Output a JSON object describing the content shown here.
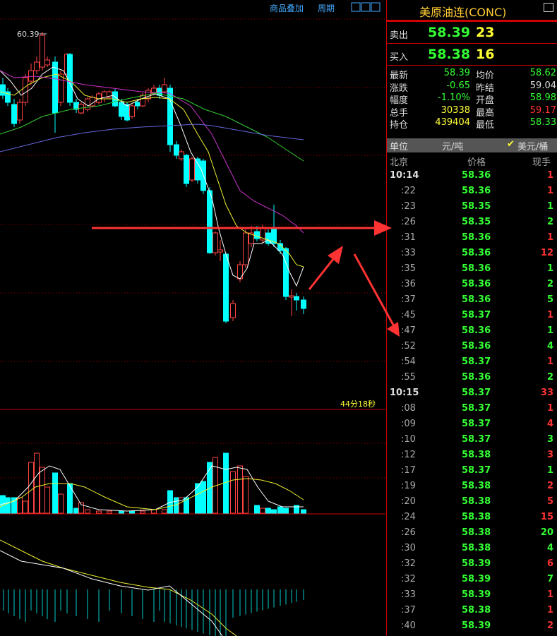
{
  "toolbar": {
    "overlay": "商品叠加",
    "period": "周期"
  },
  "chart": {
    "high_label": "60.39",
    "countdown": "44分18秒"
  },
  "quote": {
    "title": "美原油连(CONC)",
    "ask": {
      "label": "卖出",
      "price": "58.39",
      "volume": "23"
    },
    "bid": {
      "label": "买入",
      "price": "58.38",
      "volume": "16"
    },
    "stats": [
      [
        {
          "label": "最新",
          "value": "58.39",
          "color": "green"
        },
        {
          "label": "均价",
          "value": "58.62",
          "color": "green"
        }
      ],
      [
        {
          "label": "涨跌",
          "value": "-0.65",
          "color": "green"
        },
        {
          "label": "昨结",
          "value": "59.04",
          "color": "white"
        }
      ],
      [
        {
          "label": "幅度",
          "value": "-1.10%",
          "color": "green"
        },
        {
          "label": "开盘",
          "value": "58.98",
          "color": "green"
        }
      ],
      [
        {
          "label": "总手",
          "value": "30338",
          "color": "yellow"
        },
        {
          "label": "最高",
          "value": "59.17",
          "color": "red"
        }
      ],
      [
        {
          "label": "持仓",
          "value": "439404",
          "color": "yellow"
        },
        {
          "label": "最低",
          "value": "58.33",
          "color": "green"
        }
      ]
    ],
    "unit": {
      "label": "单位",
      "option1": "元/吨",
      "option2": "美元/桶"
    },
    "ticks_header": {
      "time": "北京",
      "price": "价格",
      "volume": "现手"
    },
    "ticks": [
      {
        "time": "10:14",
        "price": "58.36",
        "volume": "1",
        "color": "red"
      },
      {
        "time": ":22",
        "price": "58.36",
        "volume": "1",
        "color": "red"
      },
      {
        "time": ":23",
        "price": "58.35",
        "volume": "1",
        "color": "green"
      },
      {
        "time": ":26",
        "price": "58.35",
        "volume": "2",
        "color": "green"
      },
      {
        "time": ":31",
        "price": "58.36",
        "volume": "1",
        "color": "red"
      },
      {
        "time": ":33",
        "price": "58.36",
        "volume": "12",
        "color": "red"
      },
      {
        "time": ":35",
        "price": "58.36",
        "volume": "1",
        "color": "green"
      },
      {
        "time": ":36",
        "price": "58.36",
        "volume": "2",
        "color": "green"
      },
      {
        "time": ":37",
        "price": "58.36",
        "volume": "5",
        "color": "green"
      },
      {
        "time": ":45",
        "price": "58.37",
        "volume": "1",
        "color": "red"
      },
      {
        "time": ":47",
        "price": "58.36",
        "volume": "1",
        "color": "green"
      },
      {
        "time": ":52",
        "price": "58.36",
        "volume": "4",
        "color": "green"
      },
      {
        "time": ":54",
        "price": "58.37",
        "volume": "1",
        "color": "red"
      },
      {
        "time": ":55",
        "price": "58.36",
        "volume": "2",
        "color": "green"
      },
      {
        "time": "10:15",
        "price": "58.37",
        "volume": "33",
        "color": "red"
      },
      {
        "time": ":08",
        "price": "58.37",
        "volume": "1",
        "color": "red"
      },
      {
        "time": ":09",
        "price": "58.37",
        "volume": "4",
        "color": "red"
      },
      {
        "time": ":10",
        "price": "58.37",
        "volume": "3",
        "color": "green"
      },
      {
        "time": ":12",
        "price": "58.38",
        "volume": "3",
        "color": "red"
      },
      {
        "time": ":17",
        "price": "58.37",
        "volume": "1",
        "color": "green"
      },
      {
        "time": ":19",
        "price": "58.38",
        "volume": "2",
        "color": "red"
      },
      {
        "time": ":20",
        "price": "58.38",
        "volume": "5",
        "color": "red"
      },
      {
        "time": ":24",
        "price": "58.38",
        "volume": "15",
        "color": "red"
      },
      {
        "time": ":26",
        "price": "58.38",
        "volume": "20",
        "color": "green"
      },
      {
        "time": ":30",
        "price": "58.38",
        "volume": "4",
        "color": "green"
      },
      {
        "time": ":32",
        "price": "58.39",
        "volume": "6",
        "color": "red"
      },
      {
        "time": ":32",
        "price": "58.39",
        "volume": "7",
        "color": "green"
      },
      {
        "time": ":33",
        "price": "58.39",
        "volume": "1",
        "color": "red"
      },
      {
        "time": ":37",
        "price": "58.38",
        "volume": "1",
        "color": "red"
      },
      {
        "time": ":40",
        "price": "58.39",
        "volume": "2",
        "color": "red"
      }
    ]
  }
}
